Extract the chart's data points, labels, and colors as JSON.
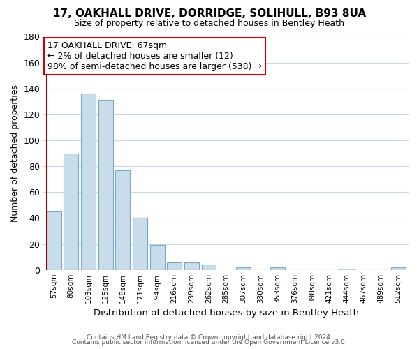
{
  "title": "17, OAKHALL DRIVE, DORRIDGE, SOLIHULL, B93 8UA",
  "subtitle": "Size of property relative to detached houses in Bentley Heath",
  "xlabel": "Distribution of detached houses by size in Bentley Heath",
  "ylabel": "Number of detached properties",
  "bar_labels": [
    "57sqm",
    "80sqm",
    "103sqm",
    "125sqm",
    "148sqm",
    "171sqm",
    "194sqm",
    "216sqm",
    "239sqm",
    "262sqm",
    "285sqm",
    "307sqm",
    "330sqm",
    "353sqm",
    "376sqm",
    "398sqm",
    "421sqm",
    "444sqm",
    "467sqm",
    "489sqm",
    "512sqm"
  ],
  "bar_values": [
    45,
    90,
    136,
    131,
    77,
    40,
    19,
    6,
    6,
    4,
    0,
    2,
    0,
    2,
    0,
    0,
    0,
    1,
    0,
    0,
    2
  ],
  "bar_color": "#c9dcea",
  "bar_edge_color": "#7aaac8",
  "highlight_bar_index": 0,
  "highlight_line_color": "#990000",
  "annotation_box_text": "17 OAKHALL DRIVE: 67sqm\n← 2% of detached houses are smaller (12)\n98% of semi-detached houses are larger (538) →",
  "ylim": [
    0,
    180
  ],
  "yticks": [
    0,
    20,
    40,
    60,
    80,
    100,
    120,
    140,
    160,
    180
  ],
  "footer_line1": "Contains HM Land Registry data © Crown copyright and database right 2024.",
  "footer_line2": "Contains public sector information licensed under the Open Government Licence v3.0.",
  "bg_color": "#ffffff",
  "grid_color": "#c8d8e8"
}
